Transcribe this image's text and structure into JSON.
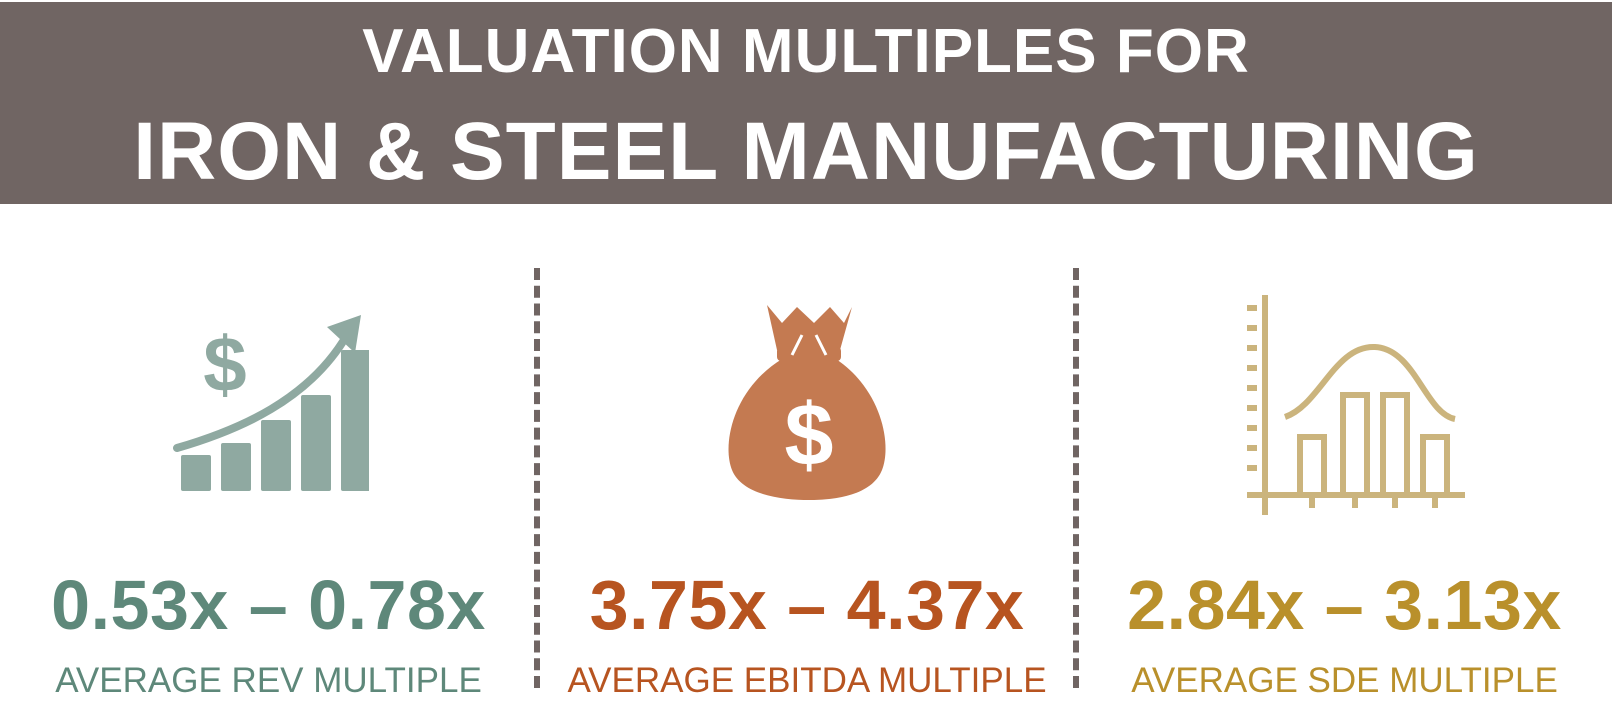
{
  "header": {
    "line1": "VALUATION MULTIPLES FOR",
    "line2": "IRON & STEEL MANUFACTURING"
  },
  "metrics": [
    {
      "range": "0.53x – 0.78x",
      "label": "AVERAGE REV MULTIPLE",
      "icon": "revenue-growth-chart-icon",
      "color": "#5e887a"
    },
    {
      "range": "3.75x – 4.37x",
      "label": "AVERAGE EBITDA MULTIPLE",
      "icon": "money-bag-icon",
      "color": "#b75420"
    },
    {
      "range": "2.84x – 3.13x",
      "label": "AVERAGE SDE MULTIPLE",
      "icon": "bell-curve-histogram-icon",
      "color": "#b9902b"
    }
  ],
  "colors": {
    "banner": "#706563",
    "rev_icon": "#8fa9a1",
    "ebitda_icon": "#c47a51",
    "sde_icon": "#cbb47d"
  }
}
